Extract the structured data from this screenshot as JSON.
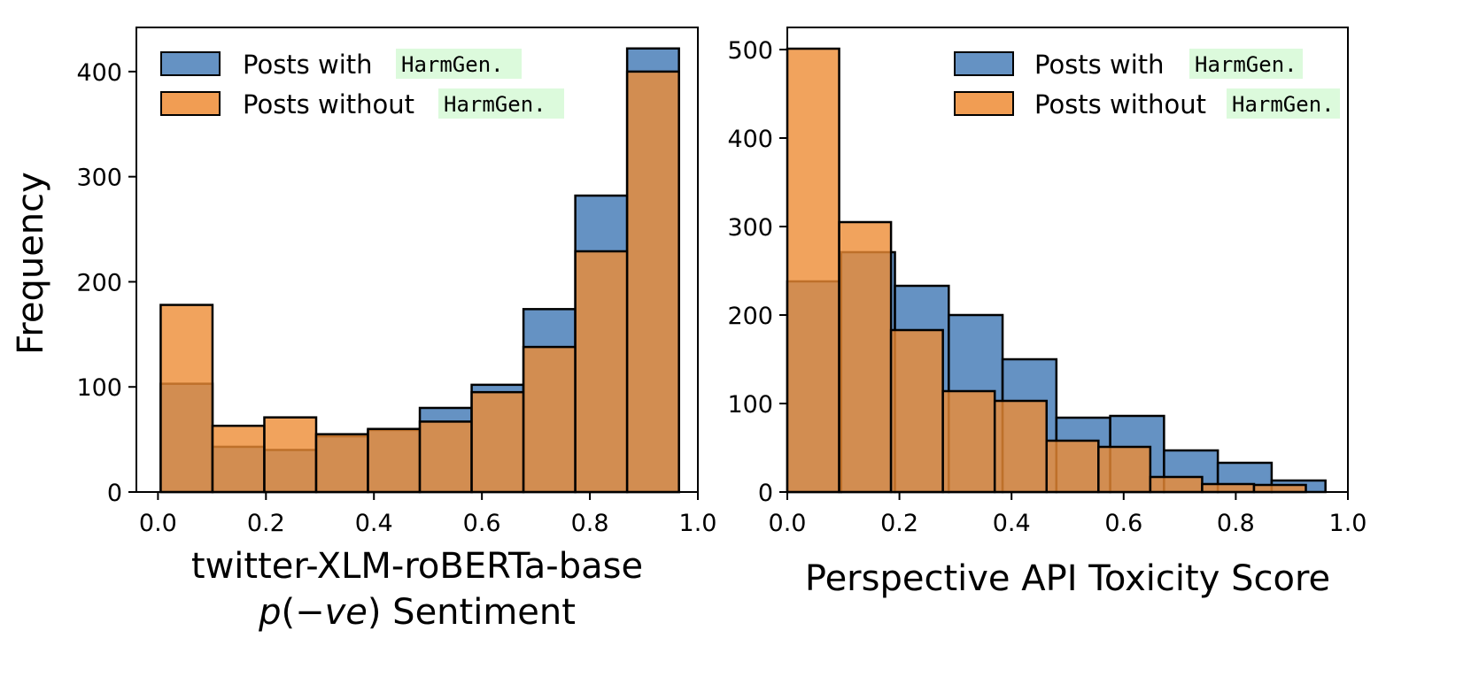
{
  "colors": {
    "with": "#4a7fb8",
    "without": "#ee8c35",
    "code_highlight": "#dcfadc",
    "frame": "#000000"
  },
  "chart_data": [
    {
      "type": "bar",
      "subtype": "overlaid-histogram",
      "xlabel": "twitter-XLM-roBERTa-base",
      "xlabel_line2": "p(−ve) Sentiment",
      "ylabel": "Frequency",
      "xlim": [
        -0.04,
        1.0
      ],
      "ylim": [
        0,
        442
      ],
      "xticks": [
        0.0,
        0.2,
        0.4,
        0.6,
        0.8,
        1.0
      ],
      "xtick_labels": [
        "0.0",
        "0.2",
        "0.4",
        "0.6",
        "0.8",
        "1.0"
      ],
      "yticks": [
        0,
        100,
        200,
        300,
        400
      ],
      "ytick_labels": [
        "0",
        "100",
        "200",
        "300",
        "400"
      ],
      "bin_edges": [
        0.005,
        0.101,
        0.197,
        0.293,
        0.389,
        0.485,
        0.581,
        0.677,
        0.773,
        0.869,
        0.965
      ],
      "legend_position": "top-left",
      "series": [
        {
          "key": "with",
          "name": "Posts with",
          "code_tag": "HarmGen.",
          "values": [
            103,
            43,
            40,
            53,
            59,
            80,
            102,
            174,
            282,
            422
          ]
        },
        {
          "key": "without",
          "name": "Posts without",
          "code_tag": "HarmGen.",
          "values": [
            178,
            63,
            71,
            55,
            60,
            67,
            95,
            138,
            229,
            400
          ]
        }
      ]
    },
    {
      "type": "bar",
      "subtype": "overlaid-histogram",
      "xlabel": "Perspective API Toxicity Score",
      "ylabel": "",
      "xlim": [
        0.0,
        1.0
      ],
      "ylim": [
        0,
        525
      ],
      "xticks": [
        0.0,
        0.2,
        0.4,
        0.6,
        0.8,
        1.0
      ],
      "xtick_labels": [
        "0.0",
        "0.2",
        "0.4",
        "0.6",
        "0.8",
        "1.0"
      ],
      "yticks": [
        0,
        100,
        200,
        300,
        400,
        500
      ],
      "ytick_labels": [
        "0",
        "100",
        "200",
        "300",
        "400",
        "500"
      ],
      "legend_position": "top-right",
      "series": [
        {
          "key": "with",
          "name": "Posts with",
          "code_tag": "HarmGen.",
          "bin_edges": [
            0.0,
            0.096,
            0.192,
            0.288,
            0.384,
            0.48,
            0.576,
            0.672,
            0.768,
            0.864,
            0.96
          ],
          "values": [
            238,
            271,
            233,
            200,
            150,
            84,
            86,
            47,
            33,
            13
          ]
        },
        {
          "key": "without",
          "name": "Posts without",
          "code_tag": "HarmGen.",
          "bin_edges": [
            0.0,
            0.0925,
            0.185,
            0.2775,
            0.37,
            0.4625,
            0.555,
            0.6475,
            0.74,
            0.8325,
            0.925
          ],
          "values": [
            501,
            305,
            183,
            114,
            103,
            58,
            51,
            17,
            9,
            8
          ]
        }
      ]
    }
  ]
}
